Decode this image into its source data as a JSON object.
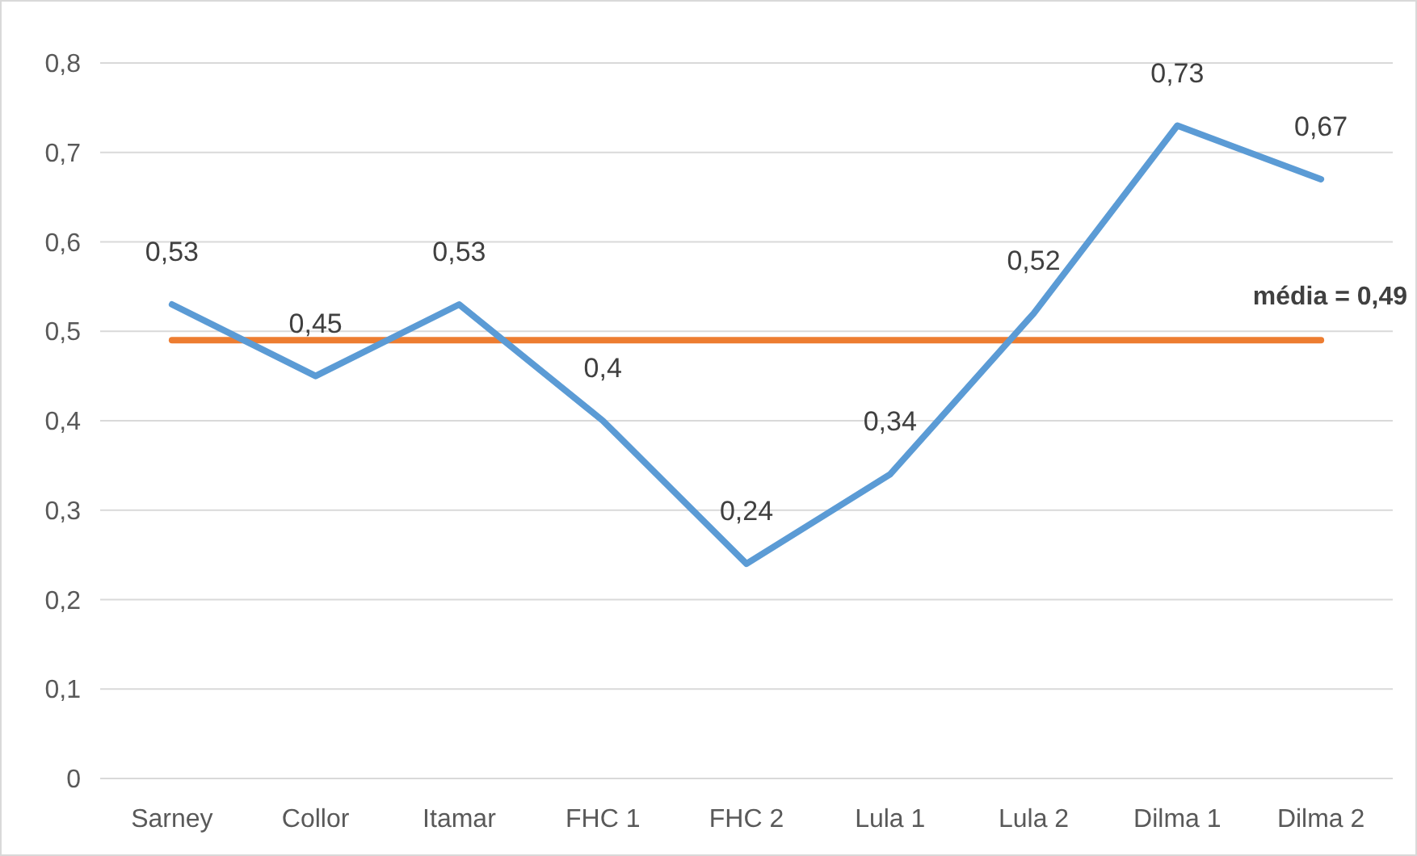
{
  "chart_data": {
    "type": "line",
    "categories": [
      "Sarney",
      "Collor",
      "Itamar",
      "FHC 1",
      "FHC 2",
      "Lula 1",
      "Lula 2",
      "Dilma 1",
      "Dilma 2"
    ],
    "series": [
      {
        "color": "#5b9bd5",
        "values": [
          0.53,
          0.45,
          0.53,
          0.4,
          0.24,
          0.34,
          0.52,
          0.73,
          0.67
        ],
        "value_labels": [
          "0,53",
          "0,45",
          "0,53",
          "0,4",
          "0,24",
          "0,34",
          "0,52",
          "0,73",
          "0,67"
        ]
      }
    ],
    "ylim": [
      0,
      0.8
    ],
    "yticks": [
      {
        "value": 0,
        "label": "0"
      },
      {
        "value": 0.1,
        "label": "0,1"
      },
      {
        "value": 0.2,
        "label": "0,2"
      },
      {
        "value": 0.3,
        "label": "0,3"
      },
      {
        "value": 0.4,
        "label": "0,4"
      },
      {
        "value": 0.5,
        "label": "0,5"
      },
      {
        "value": 0.6,
        "label": "0,6"
      },
      {
        "value": 0.7,
        "label": "0,7"
      },
      {
        "value": 0.8,
        "label": "0,8"
      }
    ],
    "ref_lines": [
      {
        "axis": "y",
        "value": 0.49,
        "label": "média = 0,49",
        "color": "#ed7d31",
        "line_style": "solid"
      }
    ],
    "grid": "y",
    "marker": "none",
    "line_style": "solid"
  }
}
